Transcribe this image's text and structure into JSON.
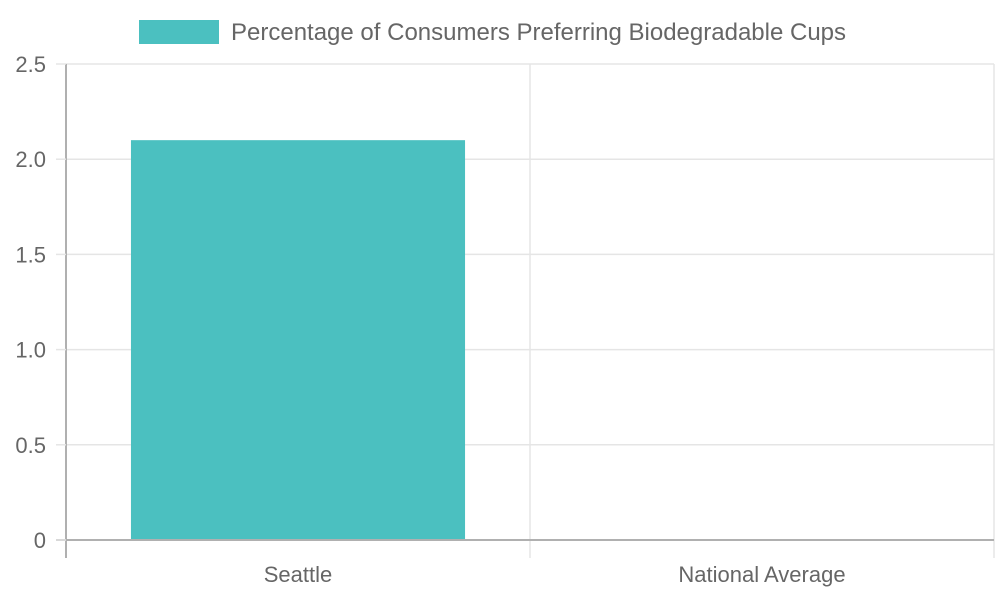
{
  "chart_data": {
    "type": "bar",
    "categories": [
      "Seattle",
      "National Average"
    ],
    "series": [
      {
        "name": "Percentage of Consumers Preferring Biodegradable Cups",
        "values": [
          2.1,
          0
        ],
        "color": "#4BC0C0"
      }
    ],
    "ylim": [
      0,
      2.5
    ],
    "yticks": [
      0,
      0.5,
      1.0,
      1.5,
      2.0,
      2.5
    ],
    "ytick_labels": [
      "0",
      "0.5",
      "1.0",
      "1.5",
      "2.0",
      "2.5"
    ],
    "grid": true,
    "legend_position": "top"
  },
  "colors": {
    "bar": "#4BC0C0",
    "grid": "#e5e5e5",
    "axis": "#b0b0b0",
    "text": "#666666"
  }
}
